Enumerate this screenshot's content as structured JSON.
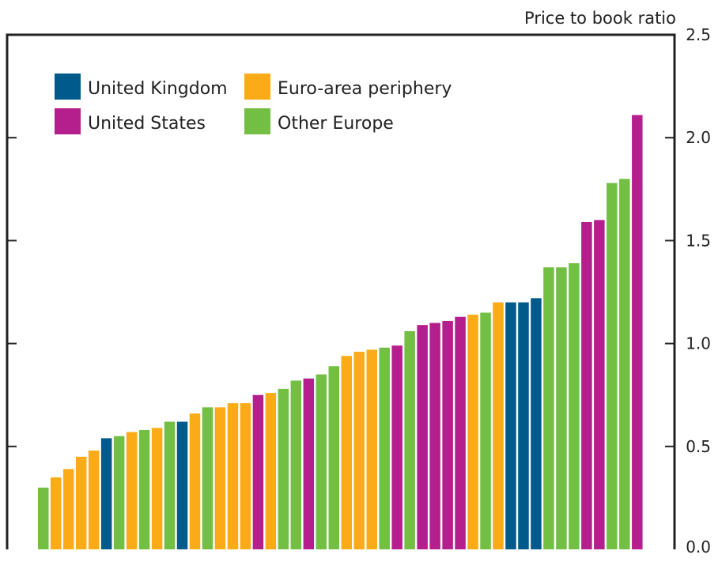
{
  "chart_data": {
    "type": "bar",
    "ylabel": "Price to book ratio",
    "ylim": [
      0,
      2.5
    ],
    "yticks": [
      "0.0",
      "0.5",
      "1.0",
      "1.5",
      "2.0",
      "2.5"
    ],
    "yaxis_side": "right",
    "legend_position": "top-left",
    "legend": [
      {
        "key": "uk",
        "label": "United Kingdom",
        "color": "#005a8c"
      },
      {
        "key": "periph",
        "label": "Euro-area periphery",
        "color": "#fbab18"
      },
      {
        "key": "us",
        "label": "United States",
        "color": "#b41f8d"
      },
      {
        "key": "other",
        "label": "Other Europe",
        "color": "#72bf44"
      }
    ],
    "bars": [
      {
        "group": "other",
        "value": 0.3
      },
      {
        "group": "periph",
        "value": 0.35
      },
      {
        "group": "periph",
        "value": 0.39
      },
      {
        "group": "periph",
        "value": 0.45
      },
      {
        "group": "periph",
        "value": 0.48
      },
      {
        "group": "uk",
        "value": 0.54
      },
      {
        "group": "other",
        "value": 0.55
      },
      {
        "group": "periph",
        "value": 0.57
      },
      {
        "group": "other",
        "value": 0.58
      },
      {
        "group": "periph",
        "value": 0.59
      },
      {
        "group": "other",
        "value": 0.62
      },
      {
        "group": "uk",
        "value": 0.62
      },
      {
        "group": "periph",
        "value": 0.66
      },
      {
        "group": "other",
        "value": 0.69
      },
      {
        "group": "periph",
        "value": 0.69
      },
      {
        "group": "periph",
        "value": 0.71
      },
      {
        "group": "periph",
        "value": 0.71
      },
      {
        "group": "us",
        "value": 0.75
      },
      {
        "group": "periph",
        "value": 0.76
      },
      {
        "group": "other",
        "value": 0.78
      },
      {
        "group": "other",
        "value": 0.82
      },
      {
        "group": "us",
        "value": 0.83
      },
      {
        "group": "other",
        "value": 0.85
      },
      {
        "group": "other",
        "value": 0.89
      },
      {
        "group": "periph",
        "value": 0.94
      },
      {
        "group": "periph",
        "value": 0.96
      },
      {
        "group": "periph",
        "value": 0.97
      },
      {
        "group": "other",
        "value": 0.98
      },
      {
        "group": "us",
        "value": 0.99
      },
      {
        "group": "other",
        "value": 1.06
      },
      {
        "group": "us",
        "value": 1.09
      },
      {
        "group": "us",
        "value": 1.1
      },
      {
        "group": "us",
        "value": 1.11
      },
      {
        "group": "us",
        "value": 1.13
      },
      {
        "group": "periph",
        "value": 1.14
      },
      {
        "group": "other",
        "value": 1.15
      },
      {
        "group": "periph",
        "value": 1.2
      },
      {
        "group": "uk",
        "value": 1.2
      },
      {
        "group": "uk",
        "value": 1.2
      },
      {
        "group": "uk",
        "value": 1.22
      },
      {
        "group": "other",
        "value": 1.37
      },
      {
        "group": "other",
        "value": 1.37
      },
      {
        "group": "other",
        "value": 1.39
      },
      {
        "group": "us",
        "value": 1.59
      },
      {
        "group": "us",
        "value": 1.6
      },
      {
        "group": "other",
        "value": 1.78
      },
      {
        "group": "other",
        "value": 1.8
      },
      {
        "group": "us",
        "value": 2.11
      }
    ]
  }
}
